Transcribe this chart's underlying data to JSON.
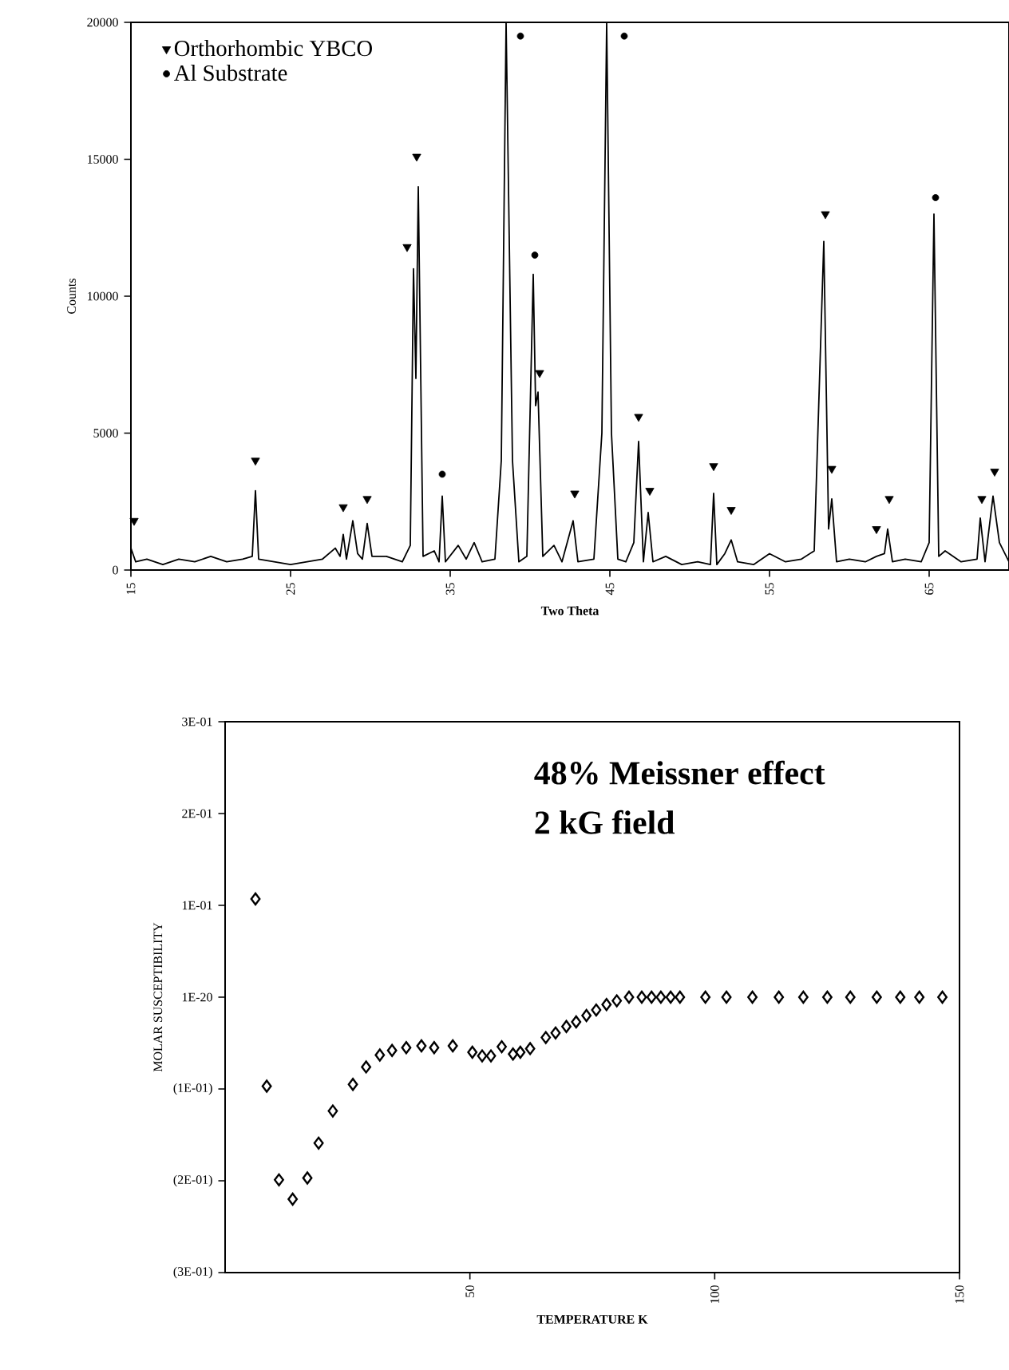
{
  "chart_data": [
    {
      "type": "line",
      "xlabel": "Two Theta",
      "ylabel": "Counts",
      "xlim": [
        15,
        70
      ],
      "xticks": [
        15,
        25,
        35,
        45,
        55,
        65
      ],
      "ylim": [
        0,
        20000
      ],
      "yticks": [
        0,
        5000,
        10000,
        15000,
        20000
      ],
      "legend": "top left",
      "series": [
        {
          "type": "line",
          "color": "#000000",
          "x": [
            15,
            15.3,
            16,
            17,
            18,
            19,
            20,
            21,
            22,
            22.6,
            22.8,
            23.0,
            24,
            25,
            26,
            27,
            27.8,
            28.1,
            28.3,
            28.5,
            28.9,
            29.2,
            29.5,
            29.8,
            30.1,
            31,
            32,
            32.5,
            32.7,
            32.85,
            33.0,
            33.3,
            34,
            34.3,
            34.5,
            34.7,
            35.5,
            36,
            36.5,
            37,
            37.8,
            38.2,
            38.5,
            38.9,
            39.3,
            39.8,
            40.2,
            40.35,
            40.5,
            40.8,
            41.5,
            42,
            42.7,
            43,
            44,
            44.5,
            44.8,
            45.1,
            45.5,
            46,
            46.5,
            46.8,
            47.1,
            47.4,
            47.7,
            48.5,
            49.5,
            50.5,
            51.3,
            51.5,
            51.7,
            52.2,
            52.6,
            53,
            54,
            55,
            56,
            57,
            57.8,
            58.4,
            58.7,
            58.9,
            59.2,
            60,
            61,
            61.7,
            62.2,
            62.4,
            62.7,
            63.5,
            64.5,
            65.0,
            65.3,
            65.6,
            66,
            67,
            68,
            68.2,
            68.5,
            69.0,
            69.4,
            70
          ],
          "values": [
            800,
            300,
            400,
            200,
            400,
            300,
            500,
            300,
            400,
            500,
            2900,
            400,
            300,
            200,
            300,
            400,
            800,
            500,
            1300,
            400,
            1800,
            600,
            400,
            1700,
            500,
            500,
            300,
            900,
            11000,
            7000,
            14000,
            500,
            700,
            300,
            2700,
            300,
            900,
            400,
            1000,
            300,
            400,
            4000,
            20000,
            4000,
            300,
            500,
            10800,
            6000,
            6500,
            500,
            900,
            300,
            1800,
            300,
            400,
            5000,
            20000,
            5000,
            400,
            300,
            1000,
            4700,
            300,
            2100,
            300,
            500,
            200,
            300,
            200,
            2800,
            200,
            600,
            1100,
            300,
            200,
            600,
            300,
            400,
            700,
            12000,
            1500,
            2600,
            300,
            400,
            300,
            500,
            600,
            1500,
            300,
            400,
            300,
            1000,
            13000,
            500,
            700,
            300,
            400,
            1900,
            300,
            2700,
            1000,
            300
          ]
        },
        {
          "type": "scatter",
          "name": "Orthorhombic YBCO",
          "marker": "triangle",
          "color": "#000000",
          "x": [
            15.2,
            22.8,
            28.3,
            29.8,
            32.3,
            32.9,
            40.6,
            42.8,
            46.8,
            47.5,
            51.5,
            52.6,
            58.5,
            58.9,
            61.7,
            62.5,
            68.3,
            69.1
          ],
          "values": [
            1800,
            4000,
            2300,
            2600,
            11800,
            15100,
            7200,
            2800,
            5600,
            2900,
            3800,
            2200,
            13000,
            3700,
            1500,
            2600,
            2600,
            3600
          ]
        },
        {
          "type": "scatter",
          "name": "Al Substrate",
          "marker": "circle",
          "color": "#000000",
          "x": [
            34.5,
            39.4,
            40.3,
            45.9,
            65.4
          ],
          "values": [
            3500,
            19500,
            11500,
            19500,
            13600
          ]
        }
      ]
    },
    {
      "type": "scatter",
      "xlabel": "TEMPERATURE  K",
      "ylabel": "MOLAR  SUSCEPTIBILITY",
      "marker": "diamond",
      "xlim": [
        0,
        150
      ],
      "xticks": [
        50,
        100,
        150
      ],
      "ylim": [
        -0.3,
        0.3
      ],
      "yticks": [
        {
          "value": 0.3,
          "label": "3E-01"
        },
        {
          "value": 0.2,
          "label": "2E-01"
        },
        {
          "value": 0.1,
          "label": "1E-01"
        },
        {
          "value": 0,
          "label": "1E-20"
        },
        {
          "value": -0.1,
          "label": "(1E-01)"
        },
        {
          "value": -0.2,
          "label": "(2E-01)"
        },
        {
          "value": -0.3,
          "label": "(3E-01)"
        }
      ],
      "annotations": [
        "48% Meissner effect",
        "2 kG field"
      ],
      "series": [
        {
          "color": "#000000",
          "x": [
            6.2,
            8.5,
            11.0,
            13.8,
            16.8,
            19.1,
            22.0,
            26.1,
            28.8,
            31.6,
            34.1,
            37.0,
            40.1,
            42.7,
            46.5,
            50.5,
            52.5,
            54.3,
            56.5,
            58.8,
            60.3,
            62.3,
            65.5,
            67.5,
            69.7,
            71.7,
            73.8,
            75.8,
            77.9,
            80.0,
            82.5,
            85.1,
            87.1,
            89.0,
            91.0,
            92.9,
            98.1,
            102.4,
            107.7,
            113.1,
            118.1,
            123.0,
            127.7,
            133.1,
            137.9,
            141.8,
            146.5
          ],
          "values": [
            0.107,
            -0.097,
            -0.199,
            -0.22,
            -0.197,
            -0.159,
            -0.124,
            -0.095,
            -0.076,
            -0.063,
            -0.058,
            -0.055,
            -0.053,
            -0.055,
            -0.053,
            -0.06,
            -0.064,
            -0.064,
            -0.054,
            -0.062,
            -0.06,
            -0.056,
            -0.044,
            -0.039,
            -0.032,
            -0.027,
            -0.02,
            -0.014,
            -0.008,
            -0.004,
            0,
            0,
            0,
            0,
            0,
            0,
            0,
            0,
            0,
            0,
            0,
            0,
            0,
            0,
            0,
            0,
            0
          ]
        }
      ]
    }
  ]
}
